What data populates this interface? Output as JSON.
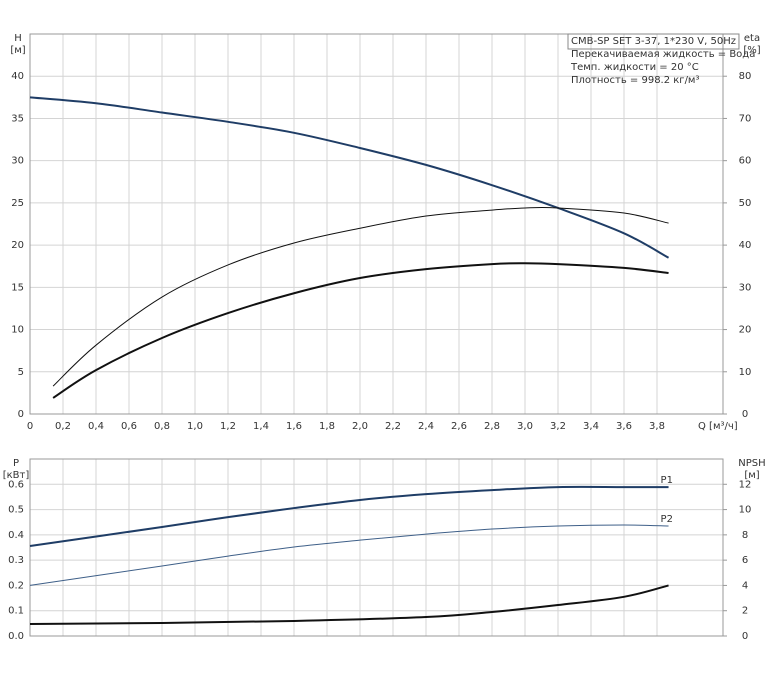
{
  "chart_data": [
    {
      "type": "line",
      "info": [
        "CMB-SP SET 3-37, 1*230 V, 50Hz",
        "Перекачиваемая жидкость = Вода",
        "Темп. жидкости = 20 °C",
        "Плотность = 998.2 кг/м³"
      ],
      "xlabel": "Q [м³/ч]",
      "ylabel": [
        "H",
        "[м]"
      ],
      "y2label": [
        "eta",
        "[%]"
      ],
      "xlim": [
        0,
        4.2
      ],
      "xticks": [
        0,
        {
          "value": 0.2,
          "label": "0,2"
        },
        {
          "value": 0.4,
          "label": "0,4"
        },
        {
          "value": 0.6,
          "label": "0,6"
        },
        {
          "value": 0.8,
          "label": "0,8"
        },
        {
          "value": 1.0,
          "label": "1,0"
        },
        {
          "value": 1.2,
          "label": "1,2"
        },
        {
          "value": 1.4,
          "label": "1,4"
        },
        {
          "value": 1.6,
          "label": "1,6"
        },
        {
          "value": 1.8,
          "label": "1,8"
        },
        {
          "value": 2.0,
          "label": "2,0"
        },
        {
          "value": 2.2,
          "label": "2,2"
        },
        {
          "value": 2.4,
          "label": "2,4"
        },
        {
          "value": 2.6,
          "label": "2,6"
        },
        {
          "value": 2.8,
          "label": "2,8"
        },
        {
          "value": 3.0,
          "label": "3,0"
        },
        {
          "value": 3.2,
          "label": "3,2"
        },
        {
          "value": 3.4,
          "label": "3,4"
        },
        {
          "value": 3.6,
          "label": "3,6"
        },
        {
          "value": 3.8,
          "label": "3,8"
        }
      ],
      "ylim": [
        0,
        45
      ],
      "yticks": [
        0,
        5,
        10,
        15,
        20,
        25,
        30,
        35,
        40
      ],
      "y2lim": [
        0,
        90
      ],
      "y2ticks": [
        0,
        10,
        20,
        30,
        40,
        50,
        60,
        70,
        80
      ],
      "grid": true,
      "series": [
        {
          "color": "#1f3d66",
          "width": 2,
          "x": [
            0,
            0.4,
            0.8,
            1.2,
            1.6,
            2.0,
            2.4,
            2.8,
            3.2,
            3.6,
            3.87
          ],
          "values": [
            37.5,
            36.8,
            35.7,
            34.6,
            33.3,
            31.5,
            29.5,
            27.1,
            24.4,
            21.4,
            18.5
          ]
        },
        {
          "color": "#111111",
          "width": 1,
          "axis": "y2",
          "x": [
            0.14,
            0.4,
            0.8,
            1.2,
            1.6,
            2.0,
            2.4,
            2.8,
            3.0,
            3.2,
            3.6,
            3.87
          ],
          "values": [
            6.6,
            16.3,
            27.7,
            35.3,
            40.5,
            44.0,
            46.9,
            48.3,
            48.8,
            48.8,
            47.6,
            45.2
          ]
        },
        {
          "color": "#111111",
          "width": 2,
          "axis": "y2",
          "x": [
            0.14,
            0.4,
            0.8,
            1.2,
            1.6,
            2.0,
            2.4,
            2.8,
            3.0,
            3.2,
            3.6,
            3.87
          ],
          "values": [
            3.8,
            10.4,
            18.0,
            23.9,
            28.6,
            32.2,
            34.3,
            35.5,
            35.7,
            35.5,
            34.6,
            33.4
          ]
        }
      ]
    },
    {
      "type": "line",
      "ylabel": [
        "P",
        "[кВт]"
      ],
      "y2label": [
        "NPSH",
        "[м]"
      ],
      "ylim": [
        0,
        0.7
      ],
      "yticks": [
        {
          "value": 0,
          "label": "0.0"
        },
        0.1,
        0.2,
        0.3,
        0.4,
        0.5,
        0.6
      ],
      "y2lim": [
        0,
        14
      ],
      "y2ticks": [
        0,
        2,
        4,
        6,
        8,
        10,
        12
      ],
      "grid": true,
      "series": [
        {
          "name": "P1",
          "color": "#1f3d66",
          "width": 2,
          "x": [
            0,
            0.8,
            1.2,
            1.6,
            2.0,
            2.4,
            2.8,
            3.2,
            3.6,
            3.87
          ],
          "values": [
            0.356,
            0.431,
            0.47,
            0.506,
            0.538,
            0.561,
            0.577,
            0.589,
            0.589,
            0.589
          ]
        },
        {
          "name": "P2",
          "color": "#3e5f88",
          "width": 1,
          "x": [
            0,
            0.8,
            1.2,
            1.6,
            2.0,
            2.4,
            2.8,
            3.2,
            3.6,
            3.87
          ],
          "values": [
            0.2,
            0.277,
            0.316,
            0.352,
            0.379,
            0.403,
            0.423,
            0.435,
            0.439,
            0.435
          ]
        },
        {
          "color": "#111111",
          "width": 2,
          "axis": "y2",
          "x": [
            0,
            0.8,
            1.6,
            2.4,
            2.8,
            3.2,
            3.6,
            3.87
          ],
          "values": [
            0.95,
            1.03,
            1.19,
            1.5,
            1.9,
            2.45,
            3.1,
            4.0
          ]
        }
      ]
    }
  ]
}
